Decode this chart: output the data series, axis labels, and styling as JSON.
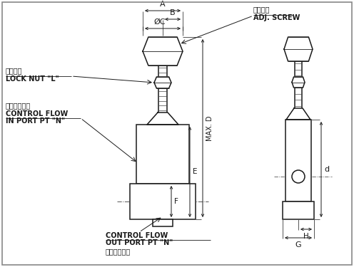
{
  "bg_color": "#ffffff",
  "line_color": "#1a1a1a",
  "text_color": "#1a1a1a",
  "labels": {
    "adj_screw_zh": "調節螺絲",
    "adj_screw_en": "ADJ. SCREW",
    "lock_nut_zh": "固定螺帽",
    "lock_nut_en": "LOCK NUT \"L\"",
    "control_flow_in_zh": "控制油流入口",
    "control_flow_in_en1": "CONTROL FLOW",
    "control_flow_in_en2": "IN PORT PT \"N\"",
    "control_flow_out_zh": "控制油流出口",
    "control_flow_out_en1": "CONTROL FLOW",
    "control_flow_out_en2": "OUT PORT PT \"N\""
  }
}
